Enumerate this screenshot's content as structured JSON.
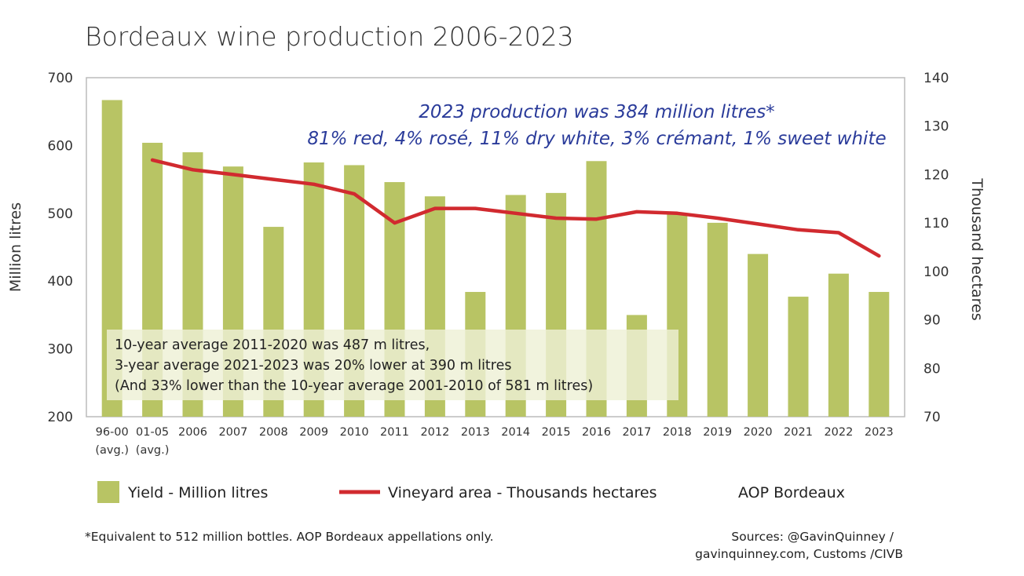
{
  "chart_data": {
    "type": "bar",
    "title": "Bordeaux wine production 2006-2023",
    "ylabel_left": "Million litres",
    "ylabel_right": "Thousand hectares",
    "ylim_left": [
      200,
      700
    ],
    "ylim_right": [
      70,
      140
    ],
    "yticks_left": [
      "200",
      "300",
      "400",
      "500",
      "600",
      "700"
    ],
    "yticks_right": [
      "70",
      "80",
      "90",
      "100",
      "110",
      "120",
      "130",
      "140"
    ],
    "categories": [
      "96-00",
      "01-05",
      "2006",
      "2007",
      "2008",
      "2009",
      "2010",
      "2011",
      "2012",
      "2013",
      "2014",
      "2015",
      "2016",
      "2017",
      "2018",
      "2019",
      "2020",
      "2021",
      "2022",
      "2023"
    ],
    "category_sublabels": [
      "(avg.)",
      "(avg.)",
      "",
      "",
      "",
      "",
      "",
      "",
      "",
      "",
      "",
      "",
      "",
      "",
      "",
      "",
      "",
      "",
      "",
      ""
    ],
    "series": [
      {
        "name": "Yield - Million litres",
        "type": "bar",
        "axis": "left",
        "color": "#b8c464",
        "values": [
          667,
          604,
          590,
          569,
          480,
          575,
          571,
          546,
          525,
          384,
          527,
          530,
          577,
          350,
          500,
          486,
          440,
          377,
          411,
          384
        ]
      },
      {
        "name": "Vineyard area - Thousands hectares",
        "type": "line",
        "axis": "right",
        "color": "#d12a2f",
        "values": [
          null,
          123,
          121,
          120,
          119,
          118,
          116,
          110,
          113,
          113,
          112,
          111,
          110.8,
          112.3,
          112,
          111,
          109.8,
          108.6,
          108,
          103.2
        ]
      }
    ],
    "annotations": {
      "handwritten_line1": "2023 production was 384 million litres*",
      "handwritten_line2": "81% red, 4% rosé, 11% dry white, 3% crémant, 1% sweet white",
      "note_line1": "10-year average 2011-2020 was 487 m litres,",
      "note_line2": "3-year average 2021-2023 was 20% lower at 390 m litres",
      "note_line3": "(And 33% lower than the 10-year average 2001-2010 of 581 m litres)"
    },
    "legend": {
      "bar_label": "Yield - Million litres",
      "line_label": "Vineyard area - Thousands hectares",
      "extra_label": "AOP Bordeaux"
    },
    "footnote": "*Equivalent to 512 million bottles. AOP Bordeaux appellations only.",
    "sources_line1": "Sources: @GavinQuinney /",
    "sources_line2": "gavinquinney.com, Customs /CIVB",
    "colors": {
      "bar": "#b8c464",
      "line": "#d12a2f",
      "note_box": "#eef0d5",
      "handwriting": "#2a3b9a",
      "frame": "#bbbbbb"
    }
  }
}
